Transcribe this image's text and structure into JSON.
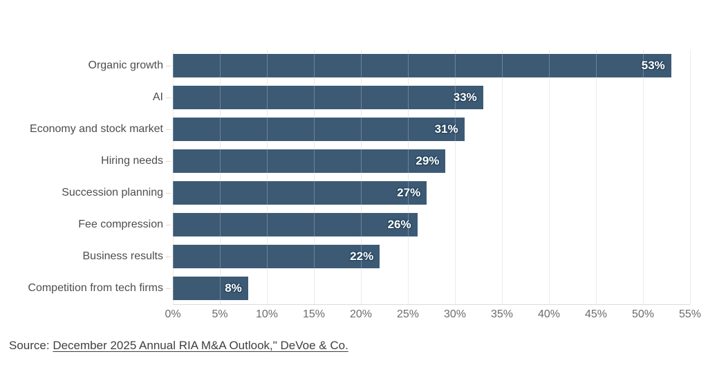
{
  "chart_data": {
    "type": "bar",
    "orientation": "horizontal",
    "categories": [
      "Organic growth",
      "AI",
      "Economy and stock market",
      "Hiring needs",
      "Succession planning",
      "Fee compression",
      "Business results",
      "Competition from tech firms"
    ],
    "values": [
      53,
      33,
      31,
      29,
      27,
      26,
      22,
      8
    ],
    "value_labels": [
      "53%",
      "33%",
      "31%",
      "29%",
      "27%",
      "26%",
      "22%",
      "8%"
    ],
    "x_ticks": [
      "0%",
      "5%",
      "10%",
      "15%",
      "20%",
      "25%",
      "30%",
      "35%",
      "40%",
      "45%",
      "50%",
      "55%"
    ],
    "xlim": [
      0,
      55
    ],
    "title": "",
    "xlabel": "",
    "ylabel": "",
    "grid": "vertical",
    "legend": "none",
    "bar_color": "#3d5a75",
    "value_label_color": "#ffffff",
    "category_label_color": "#4d4d4d",
    "gridline_color": "#e4e4e4"
  },
  "source": {
    "prefix": "Source: ",
    "link_text": "December 2025 Annual RIA M&A Outlook,\" DeVoe & Co."
  }
}
